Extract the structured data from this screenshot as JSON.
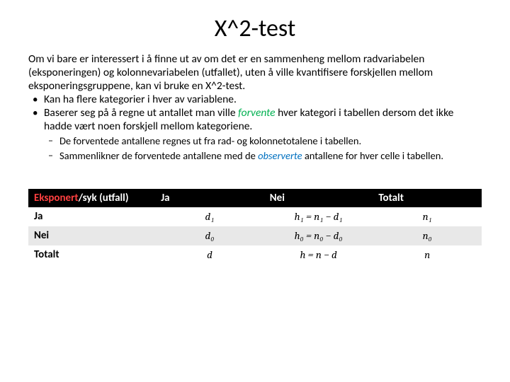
{
  "title": "X^2-test",
  "paragraph": "Om vi bare er interessert i å finne ut av om det er en sammenheng mellom radvariabelen (eksponeringen) og kolonnevariabelen (utfallet), uten å ville kvantifisere forskjellen mellom eksponeringsgruppene, kan vi bruke en X^2-test.",
  "bullet1": "Kan ha flere kategorier i hver av variablene.",
  "bullet2_pre": "Baserer seg på å regne ut antallet man ville ",
  "bullet2_green": "forvente",
  "bullet2_post": " hver kategori i tabellen dersom det ikke hadde vært noen forskjell mellom kategoriene.",
  "sub1": "De forventede antallene regnes ut fra rad- og kolonnetotalene i tabellen.",
  "sub2_pre": "Sammenlikner de forventede antallene med de ",
  "sub2_blue": "observerte",
  "sub2_post": " antallene for hver celle i tabellen.",
  "table": {
    "hdr_red": "Eksponert",
    "hdr_rest": "/syk (utfall)",
    "col_ja": "Ja",
    "col_nei": "Nei",
    "col_tot": "Totalt",
    "row_ja": "Ja",
    "row_nei": "Nei",
    "row_tot": "Totalt",
    "r1c1": "d₁",
    "r1c2": "h₁ = n₁ − d₁",
    "r1c3": "n₁",
    "r2c1": "d₀",
    "r2c2": "h₀ = n₀ − d₀",
    "r2c3": "n₀",
    "r3c1": "d",
    "r3c2": "h = n − d",
    "r3c3": "n"
  }
}
